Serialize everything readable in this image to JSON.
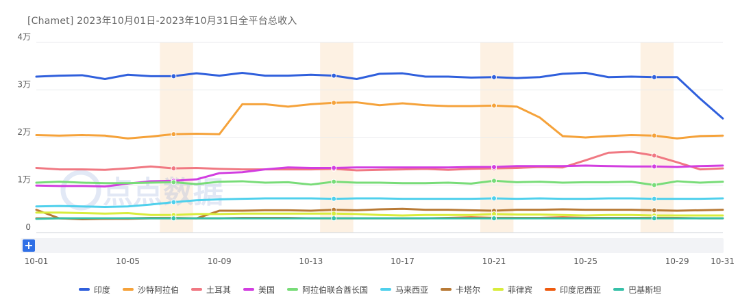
{
  "title": "[Chamet]  2023年10月01日-2023年10月31日全平台总收入",
  "watermark": "点点数据",
  "zoom": {
    "handle_label": "+"
  },
  "chart_data": {
    "type": "line",
    "title": "[Chamet]  2023年10月01日-2023年10月31日全平台总收入",
    "y_ticks": [
      "0",
      "1万",
      "2万",
      "3万",
      "4万"
    ],
    "ylim": [
      0,
      40000
    ],
    "grid": true,
    "legend_position": "bottom",
    "x": [
      "10-01",
      "10-02",
      "10-03",
      "10-04",
      "10-05",
      "10-06",
      "10-07",
      "10-08",
      "10-09",
      "10-10",
      "10-11",
      "10-12",
      "10-13",
      "10-14",
      "10-15",
      "10-16",
      "10-17",
      "10-18",
      "10-19",
      "10-20",
      "10-21",
      "10-22",
      "10-23",
      "10-24",
      "10-25",
      "10-26",
      "10-27",
      "10-28",
      "10-29",
      "10-30",
      "10-31"
    ],
    "x_tick_labels": [
      "10-01",
      "10-05",
      "10-09",
      "10-13",
      "10-17",
      "10-21",
      "10-25",
      "10-29",
      "10-31"
    ],
    "highlight_dates": [
      "10-07",
      "10-14",
      "10-21",
      "10-28"
    ],
    "series": [
      {
        "name": "印度",
        "color": "#2f5fdc",
        "values": [
          32800,
          33000,
          33100,
          32300,
          33200,
          32900,
          32900,
          33500,
          33000,
          33600,
          33000,
          33000,
          33200,
          33000,
          32300,
          33400,
          33500,
          32800,
          32800,
          32600,
          32700,
          32500,
          32700,
          33400,
          33600,
          32700,
          32800,
          32700,
          32700,
          28200,
          24000
        ]
      },
      {
        "name": "沙特阿拉伯",
        "color": "#f5a23a",
        "values": [
          20500,
          20400,
          20500,
          20400,
          19800,
          20200,
          20700,
          20800,
          20700,
          27000,
          27000,
          26500,
          27000,
          27300,
          27400,
          26800,
          27200,
          26800,
          26600,
          26600,
          26700,
          26500,
          24200,
          20300,
          20000,
          20300,
          20500,
          20400,
          19800,
          20300,
          20400
        ]
      },
      {
        "name": "土耳其",
        "color": "#f07882",
        "values": [
          13600,
          13300,
          13300,
          13200,
          13500,
          13900,
          13500,
          13600,
          13400,
          13300,
          13300,
          13300,
          13300,
          13400,
          13100,
          13200,
          13300,
          13400,
          13200,
          13400,
          13500,
          13600,
          13800,
          13700,
          15200,
          16800,
          17000,
          16200,
          14800,
          13300,
          13500
        ]
      },
      {
        "name": "美国",
        "color": "#d23ee0",
        "values": [
          9900,
          9800,
          9800,
          9700,
          10300,
          10800,
          10900,
          11200,
          12500,
          12700,
          13300,
          13700,
          13600,
          13600,
          13700,
          13700,
          13700,
          13700,
          13700,
          13800,
          13800,
          14000,
          14000,
          14000,
          14100,
          14000,
          13900,
          13900,
          13800,
          14000,
          14100
        ]
      },
      {
        "name": "阿拉伯联合酋长国",
        "color": "#78dc78",
        "values": [
          10500,
          10700,
          10500,
          10400,
          10400,
          10500,
          10600,
          10200,
          10700,
          10800,
          10500,
          10600,
          10100,
          10700,
          10500,
          10500,
          10400,
          10400,
          10500,
          10300,
          10900,
          10600,
          10700,
          10500,
          10600,
          10600,
          10700,
          10000,
          10800,
          10500,
          10700
        ]
      },
      {
        "name": "马来西亚",
        "color": "#4fd0ec",
        "values": [
          5500,
          5600,
          5500,
          5400,
          5500,
          5900,
          6400,
          6800,
          7000,
          7100,
          7200,
          7200,
          7200,
          7100,
          7200,
          7200,
          7100,
          7100,
          7100,
          7100,
          7200,
          7100,
          7200,
          7100,
          7100,
          7200,
          7200,
          7100,
          7100,
          7100,
          7200
        ]
      },
      {
        "name": "卡塔尔",
        "color": "#b87a36",
        "values": [
          4800,
          3000,
          2800,
          2900,
          3000,
          3100,
          3100,
          3000,
          4600,
          4600,
          4700,
          4700,
          4600,
          4800,
          4700,
          4900,
          5000,
          4800,
          4800,
          4700,
          4600,
          4800,
          4800,
          4900,
          4800,
          4800,
          4800,
          4700,
          4600,
          4700,
          4800
        ]
      },
      {
        "name": "菲律宾",
        "color": "#d8ec3c",
        "values": [
          4200,
          4200,
          4100,
          4000,
          4100,
          3700,
          3700,
          3900,
          3900,
          4000,
          4000,
          4000,
          4000,
          4000,
          3900,
          3700,
          3600,
          3700,
          3700,
          3700,
          3900,
          3800,
          3800,
          3700,
          3600,
          3700,
          3700,
          3600,
          3600,
          3600,
          3600
        ]
      },
      {
        "name": "印度尼西亚",
        "color": "#ee5a0e",
        "values": [
          3000,
          3000,
          2900,
          2900,
          2900,
          3000,
          3000,
          3000,
          3000,
          3100,
          3100,
          3100,
          3000,
          3000,
          3000,
          3000,
          3000,
          3000,
          3100,
          3200,
          3100,
          3100,
          3100,
          3200,
          3100,
          3100,
          3100,
          3100,
          3100,
          3000,
          3000
        ]
      },
      {
        "name": "巴基斯坦",
        "color": "#36c0a8",
        "values": [
          2900,
          3000,
          3000,
          3000,
          3000,
          3000,
          3000,
          3000,
          3000,
          3000,
          3000,
          3000,
          3000,
          3000,
          3000,
          3000,
          3000,
          3000,
          3000,
          3000,
          3000,
          3000,
          3000,
          3000,
          3000,
          3000,
          3000,
          3000,
          3000,
          3000,
          3000
        ]
      }
    ]
  }
}
